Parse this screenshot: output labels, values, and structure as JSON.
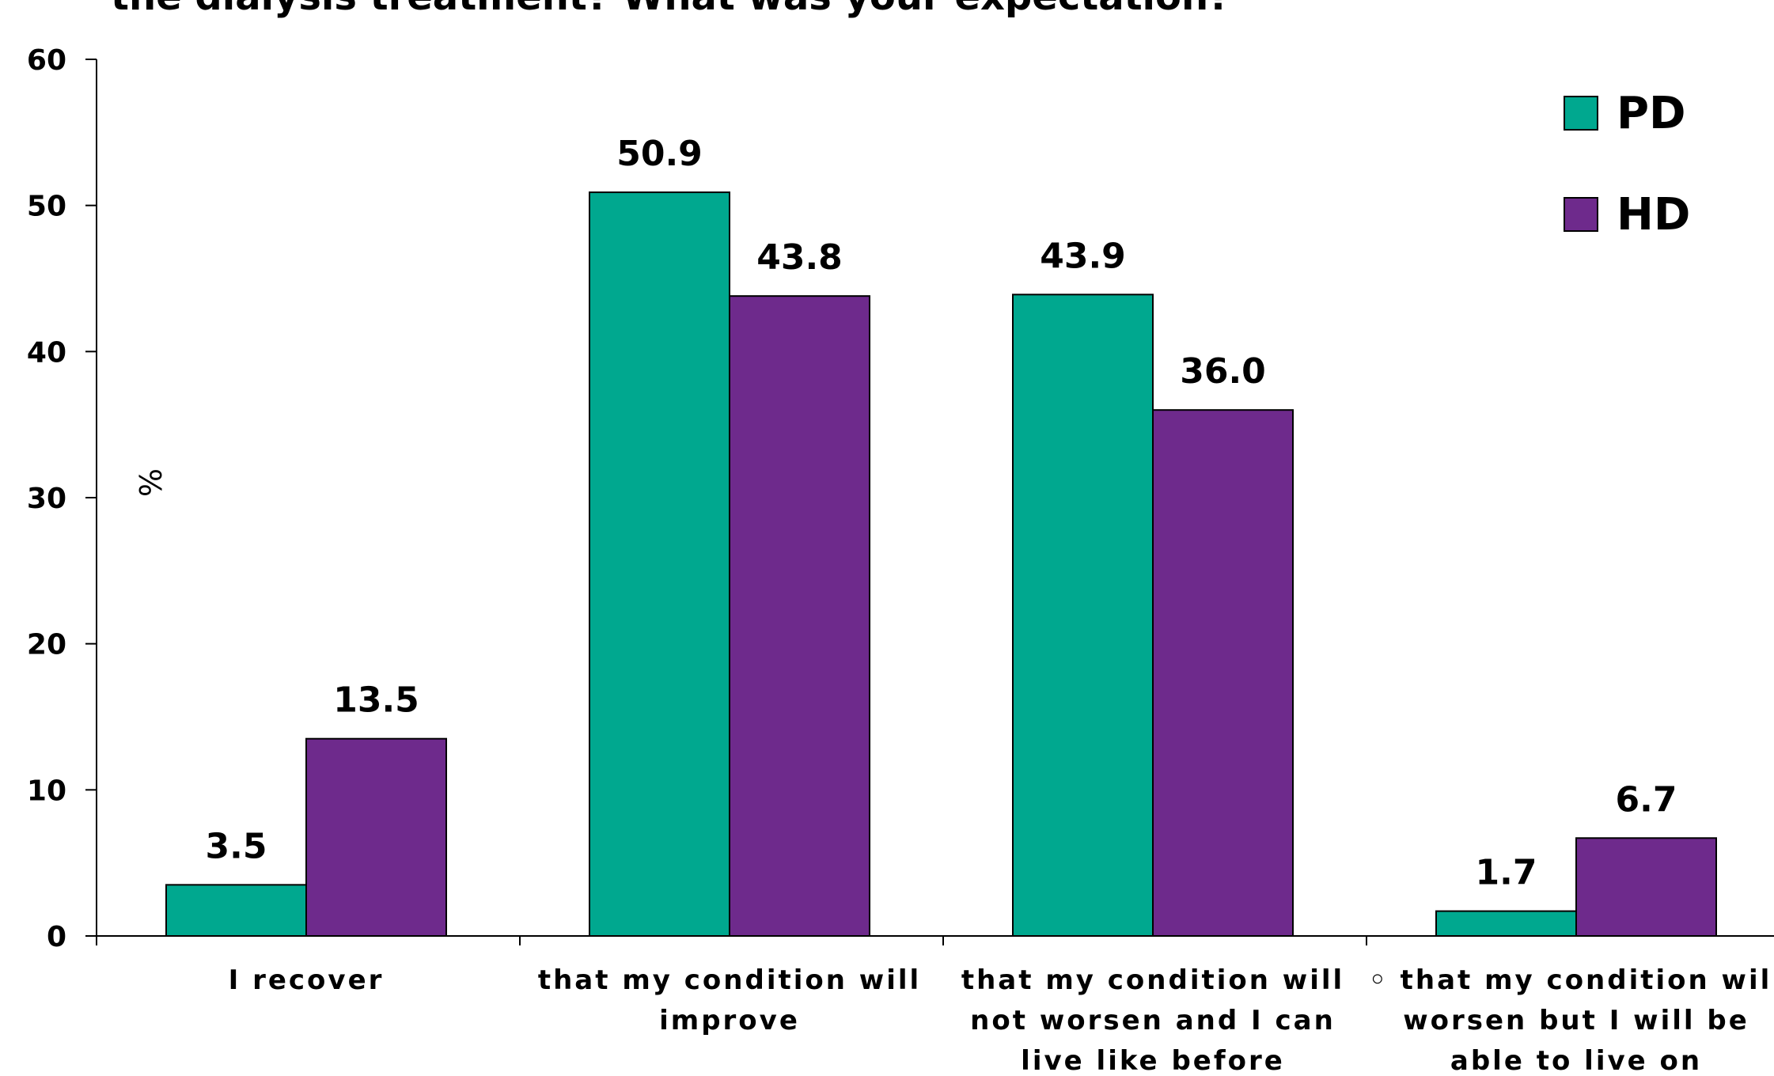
{
  "chart_data": {
    "type": "bar",
    "title": "the dialysis treatment? What was your expectation?",
    "ylabel": "%",
    "xlabel": "",
    "ylim": [
      0,
      60
    ],
    "yticks": [
      0,
      10,
      20,
      30,
      40,
      50,
      60
    ],
    "categories": [
      "I recover",
      "that my condition will improve",
      "that my condition will not worsen and I can live like before",
      "that my condition will worsen but I will be able to live on"
    ],
    "category_label_lines": [
      [
        "I recover"
      ],
      [
        "that my condition will",
        "improve"
      ],
      [
        "that my condition will",
        "not worsen and I can",
        "live like before"
      ],
      [
        "◦ that my condition will",
        "worsen but I will be",
        "able to live on"
      ]
    ],
    "series": [
      {
        "name": "PD",
        "color": "#00A88F",
        "values": [
          3.5,
          50.9,
          43.9,
          1.7
        ],
        "labels": [
          "3.5",
          "50.9",
          "43.9",
          "1.7"
        ]
      },
      {
        "name": "HD",
        "color": "#6E2A8C",
        "values": [
          13.5,
          43.8,
          36.0,
          6.7
        ],
        "labels": [
          "13.5",
          "43.8",
          "36.0",
          "6.7"
        ]
      }
    ],
    "legend": {
      "position": "top-right"
    },
    "grid": false
  }
}
